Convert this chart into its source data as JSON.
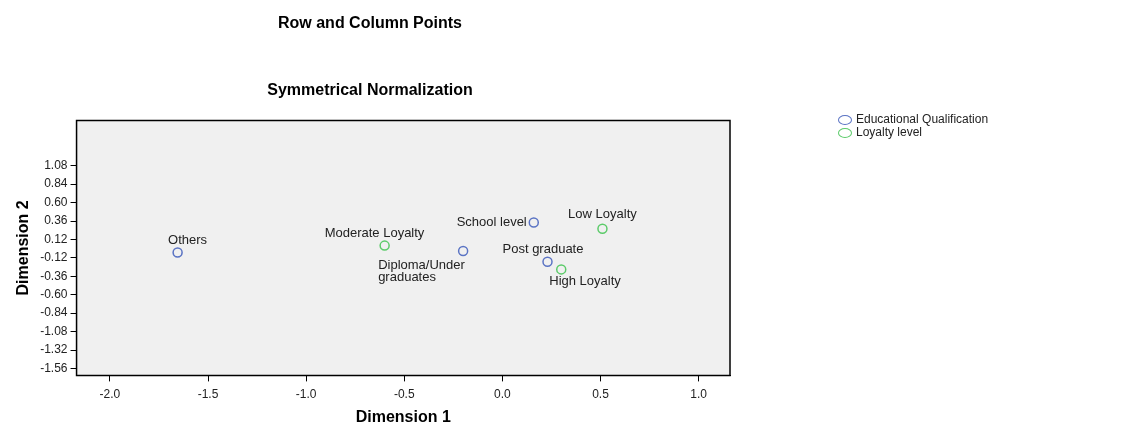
{
  "chart_data": {
    "type": "scatter",
    "title": "Row and Column Points",
    "subtitle": "Symmetrical Normalization",
    "xlabel": "Dimension 1",
    "ylabel": "Dimension 2",
    "series": [
      {
        "name": "Educational Qualification",
        "color": "#5b74c4",
        "x": [
          -1.655,
          -0.2,
          0.16,
          0.23
        ],
        "values": [
          -0.05,
          -0.03,
          0.34,
          -0.17
        ]
      },
      {
        "name": "Loyalty level",
        "color": "#5ccb6a",
        "x": [
          -0.6,
          0.51,
          0.3
        ],
        "values": [
          0.04,
          0.26,
          -0.27
        ]
      }
    ],
    "annotations": [
      {
        "text": "Others",
        "x": -1.655,
        "y": -0.05
      },
      {
        "text": "Diploma/Under graduates",
        "x": -0.2,
        "y": -0.03
      },
      {
        "text": "School level",
        "x": 0.16,
        "y": 0.34
      },
      {
        "text": "Post graduate",
        "x": 0.23,
        "y": -0.17
      },
      {
        "text": "Moderate Loyalty",
        "x": -0.6,
        "y": 0.04
      },
      {
        "text": "Low Loyalty",
        "x": 0.51,
        "y": 0.26
      },
      {
        "text": "High Loyalty",
        "x": 0.3,
        "y": -0.27
      }
    ],
    "xlim": [
      -2.17,
      1.16
    ],
    "xticks": [
      {
        "value": -2,
        "label": "-2.0"
      },
      {
        "value": -1.5,
        "label": "-1.5"
      },
      {
        "value": -1,
        "label": "-1.0"
      },
      {
        "value": -0.5,
        "label": "-0.5"
      },
      {
        "value": 0,
        "label": "0.0"
      },
      {
        "value": 0.5,
        "label": "0.5"
      },
      {
        "value": 1,
        "label": "1.0"
      }
    ],
    "ylim": [
      -1.65,
      1.67
    ],
    "yticks": [
      1.08,
      0.84,
      {
        "value": 0.6,
        "label": "0.60"
      },
      0.36,
      0.12,
      -0.12,
      -0.36,
      {
        "value": -0.6,
        "label": "-0.60"
      },
      -0.84,
      -1.08,
      -1.32,
      -1.56
    ],
    "grid": false,
    "legend": "top right",
    "marker": "circle"
  }
}
